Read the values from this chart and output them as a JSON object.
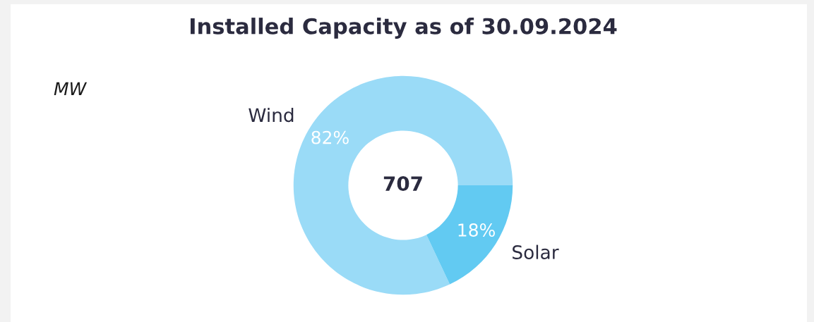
{
  "chart_data": {
    "type": "donut",
    "title": "Installed Capacity as of 30.09.2024",
    "categories": [
      "Wind",
      "Solar"
    ],
    "values": [
      82,
      18
    ],
    "colors": [
      "#9adbf7",
      "#62caf2"
    ],
    "value_labels": [
      "82%",
      "18%"
    ],
    "annotations": [
      "707",
      "MW"
    ]
  }
}
